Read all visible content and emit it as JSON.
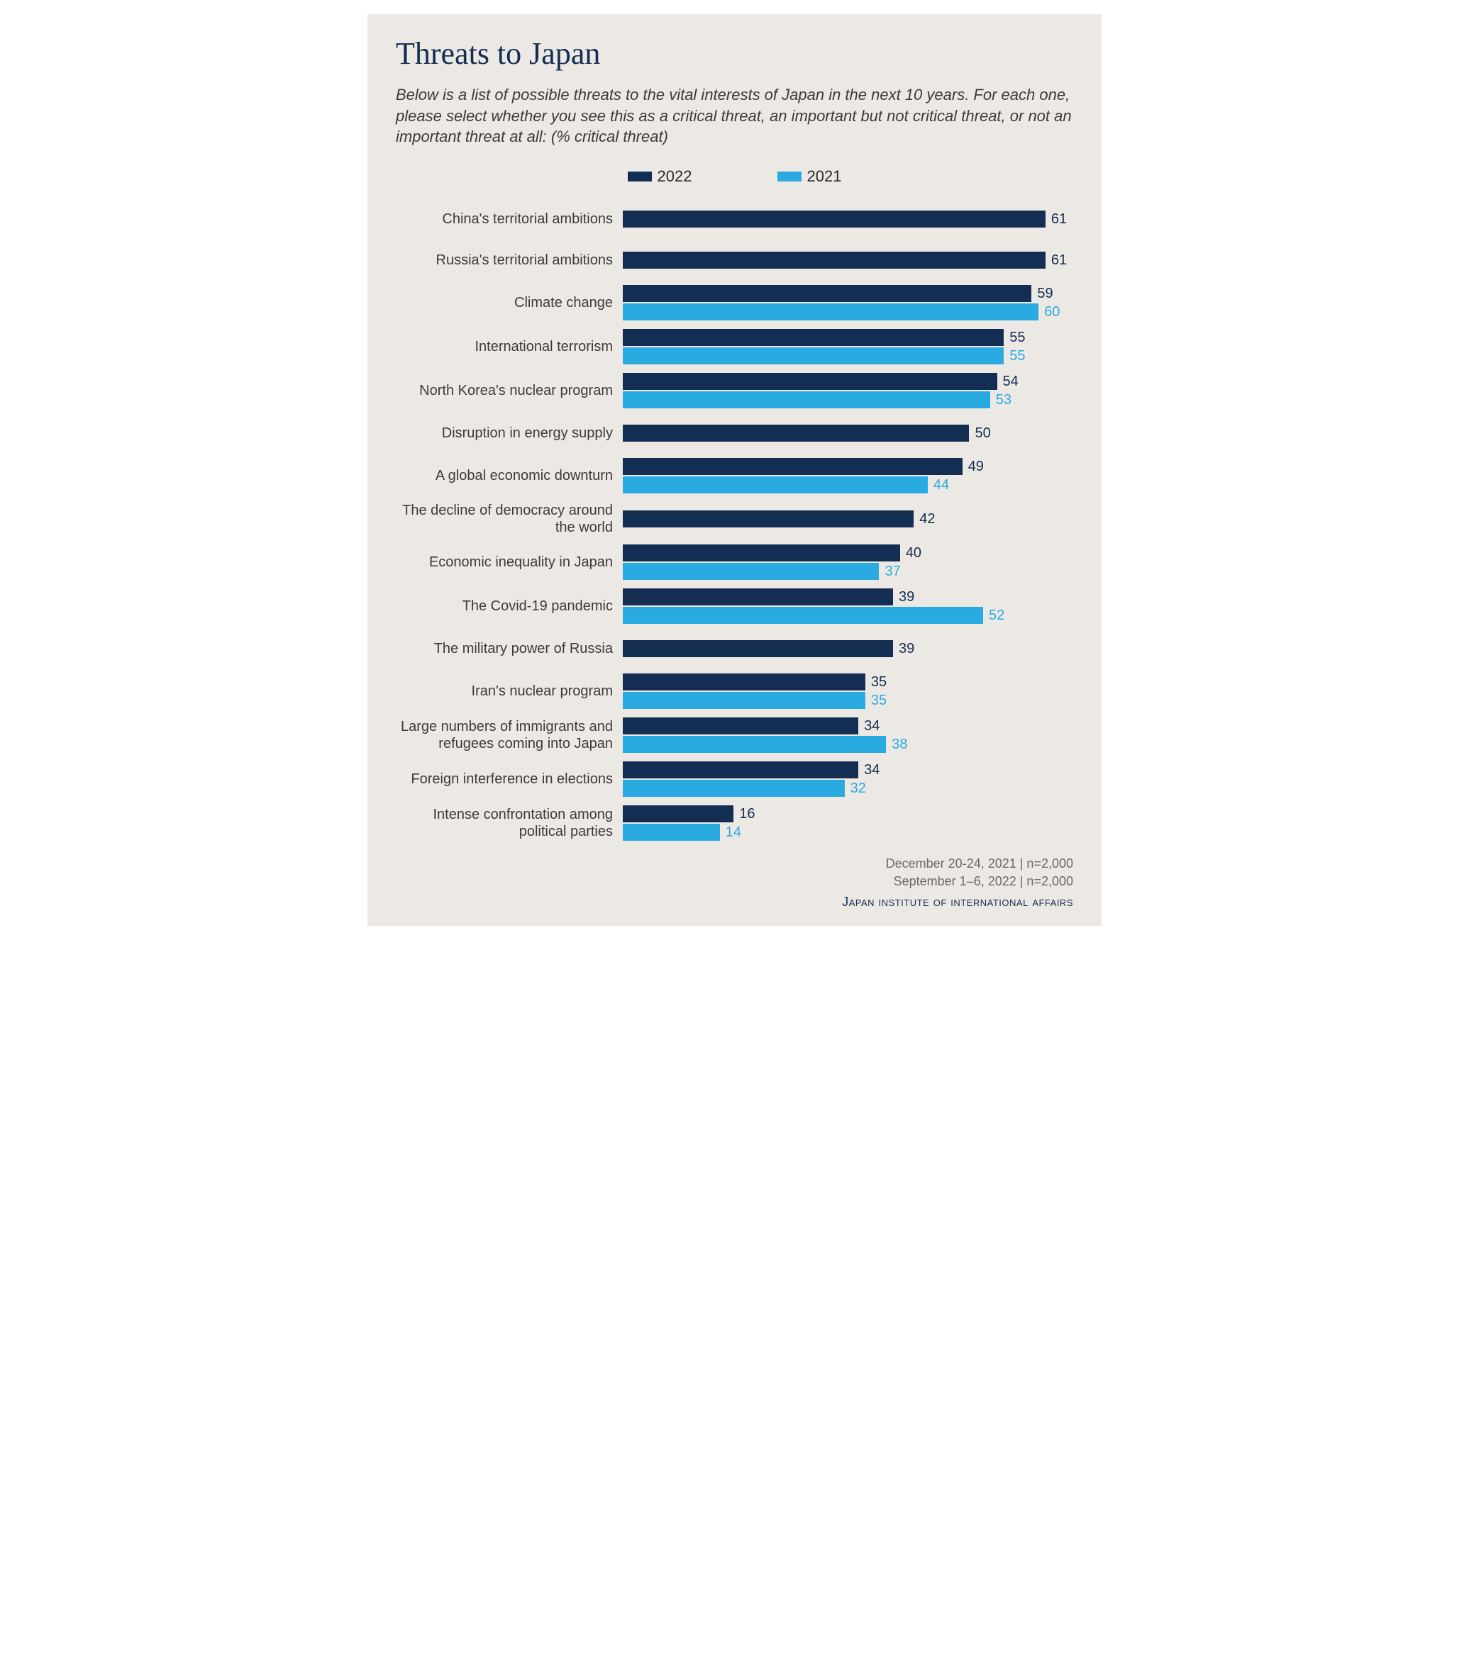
{
  "title": "Threats to Japan",
  "subtitle": "Below is a list of possible threats to the vital interests of Japan in the next 10 years. For each one, please select whether you see this as a critical threat, an important but not critical threat, or not an important threat at all: (% critical threat)",
  "chart": {
    "type": "horizontal-bar-grouped",
    "max_value": 65,
    "background_color": "#ece9e4",
    "title_color": "#142d52",
    "text_color": "#3b3b3b",
    "series": [
      {
        "name": "2022",
        "color": "#142d52"
      },
      {
        "name": "2021",
        "color": "#29abe2"
      }
    ],
    "categories": [
      {
        "label": "China's territorial ambitions",
        "v2022": 61,
        "v2021": null
      },
      {
        "label": "Russia's territorial ambitions",
        "v2022": 61,
        "v2021": null
      },
      {
        "label": "Climate change",
        "v2022": 59,
        "v2021": 60
      },
      {
        "label": "International terrorism",
        "v2022": 55,
        "v2021": 55
      },
      {
        "label": "North Korea's nuclear program",
        "v2022": 54,
        "v2021": 53
      },
      {
        "label": "Disruption in energy supply",
        "v2022": 50,
        "v2021": null
      },
      {
        "label": "A global economic downturn",
        "v2022": 49,
        "v2021": 44
      },
      {
        "label": "The decline of democracy around the world",
        "v2022": 42,
        "v2021": null
      },
      {
        "label": "Economic inequality in Japan",
        "v2022": 40,
        "v2021": 37
      },
      {
        "label": "The Covid-19 pandemic",
        "v2022": 39,
        "v2021": 52
      },
      {
        "label": "The military power of Russia",
        "v2022": 39,
        "v2021": null
      },
      {
        "label": "Iran's nuclear program",
        "v2022": 35,
        "v2021": 35
      },
      {
        "label": "Large numbers of immigrants and refugees coming into Japan",
        "v2022": 34,
        "v2021": 38
      },
      {
        "label": "Foreign interference in elections",
        "v2022": 34,
        "v2021": 32
      },
      {
        "label": "Intense confrontation among political parties",
        "v2022": 16,
        "v2021": 14
      }
    ]
  },
  "footer": {
    "line1": "December 20-24, 2021 | n=2,000",
    "line2": "September 1–6, 2022  | n=2,000",
    "source": "Japan institute of international affairs"
  }
}
